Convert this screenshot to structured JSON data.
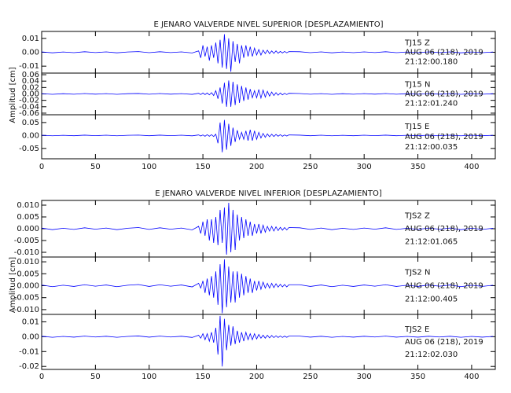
{
  "chart_data": [
    {
      "type": "line",
      "title": "E JENARO VALVERDE NIVEL SUPERIOR [DESPLAZAMIENTO]",
      "ylabel": "Amplitud [cm]",
      "xlim": [
        0,
        422
      ],
      "xticks": [
        0,
        50,
        100,
        150,
        200,
        250,
        300,
        350,
        400
      ],
      "x": [
        0,
        10,
        20,
        30,
        40,
        50,
        60,
        70,
        80,
        90,
        100,
        110,
        120,
        130,
        140,
        146,
        148,
        150,
        152,
        154,
        156,
        158,
        160,
        162,
        164,
        166,
        168,
        170,
        172,
        174,
        176,
        178,
        180,
        182,
        184,
        186,
        188,
        190,
        192,
        194,
        196,
        198,
        200,
        202,
        204,
        206,
        208,
        210,
        212,
        214,
        216,
        218,
        220,
        222,
        224,
        226,
        228,
        230,
        240,
        250,
        260,
        270,
        280,
        290,
        300,
        310,
        320,
        330,
        340,
        350,
        360,
        370,
        380,
        390,
        400,
        410,
        420
      ],
      "series": [
        {
          "name": "TJ15  Z",
          "date": "AUG 06 (218), 2019",
          "time": "21:12:00.180",
          "color": "#0000ff",
          "ylim": [
            -0.015,
            0.015
          ],
          "yticks": [
            0.01,
            {
              "value": 0,
              "label": "0.00"
            },
            -0.01
          ],
          "values": [
            0.0003,
            -0.0004,
            0.0002,
            -0.0003,
            0.0004,
            -0.0002,
            0.0003,
            -0.0004,
            0.0002,
            0.0005,
            -0.0003,
            0.0004,
            -0.0002,
            0.0003,
            -0.0005,
            0.001,
            -0.004,
            0.005,
            -0.003,
            0.004,
            -0.006,
            0.005,
            -0.004,
            0.007,
            -0.008,
            0.009,
            -0.011,
            0.013,
            -0.012,
            0.01,
            -0.014,
            0.008,
            -0.007,
            0.006,
            -0.008,
            0.005,
            -0.004,
            0.005,
            -0.003,
            0.004,
            -0.003,
            0.003,
            -0.002,
            0.002,
            -0.002,
            0.0015,
            -0.001,
            0.0015,
            -0.001,
            0.001,
            -0.0008,
            0.001,
            -0.0007,
            0.0006,
            -0.0005,
            0.0006,
            -0.0004,
            0.0005,
            0.0004,
            -0.0003,
            0.0003,
            -0.0004,
            0.0002,
            -0.0003,
            0.0003,
            -0.0002,
            0.0004,
            -0.0003,
            0.0002,
            -0.0003,
            0.0003,
            -0.0002,
            0.0003,
            -0.0004,
            0.0002,
            -0.0003,
            0.0002
          ]
        },
        {
          "name": "TJ15  N",
          "date": "AUG 06 (218), 2019",
          "time": "21:12:01.240",
          "color": "#0000ff",
          "ylim": [
            -0.065,
            0.065
          ],
          "yticks": [
            0.06,
            0.04,
            0.02,
            {
              "value": 0,
              "label": "0.00"
            },
            -0.02,
            -0.04,
            -0.06
          ],
          "values": [
            0.001,
            -0.0012,
            0.0008,
            -0.001,
            0.0012,
            -0.0008,
            0.001,
            -0.0012,
            0.0008,
            0.0014,
            -0.001,
            0.0012,
            -0.0008,
            0.001,
            -0.0014,
            0.002,
            -0.002,
            0.003,
            -0.002,
            0.003,
            -0.003,
            0.004,
            -0.005,
            0.01,
            -0.015,
            0.02,
            -0.03,
            0.035,
            -0.04,
            0.042,
            -0.04,
            0.038,
            -0.035,
            0.03,
            -0.028,
            0.025,
            -0.022,
            0.02,
            -0.018,
            0.015,
            -0.012,
            0.01,
            -0.012,
            0.014,
            -0.013,
            0.012,
            -0.01,
            0.008,
            -0.007,
            0.006,
            -0.005,
            0.004,
            -0.004,
            0.003,
            -0.003,
            0.002,
            -0.002,
            0.002,
            0.0012,
            -0.001,
            0.001,
            -0.0012,
            0.0008,
            -0.001,
            0.001,
            -0.0008,
            0.0012,
            -0.001,
            0.0008,
            -0.001,
            0.001,
            -0.0008,
            0.001,
            -0.0012,
            0.0008,
            -0.001,
            0.0008
          ]
        },
        {
          "name": "TJ15  E",
          "date": "AUG 06 (218), 2019",
          "time": "21:12:00.035",
          "color": "#0000ff",
          "ylim": [
            -0.09,
            0.08
          ],
          "yticks": [
            0.05,
            {
              "value": 0,
              "label": "0.00"
            },
            -0.05
          ],
          "values": [
            0.001,
            -0.0012,
            0.0008,
            -0.001,
            0.0012,
            -0.0008,
            0.001,
            -0.0012,
            0.0008,
            0.0014,
            -0.001,
            0.0012,
            -0.0008,
            0.001,
            -0.0014,
            0.002,
            -0.002,
            0.002,
            -0.003,
            0.003,
            -0.003,
            0.003,
            -0.004,
            0.005,
            -0.03,
            0.05,
            -0.065,
            0.06,
            -0.055,
            0.045,
            -0.04,
            0.03,
            -0.025,
            0.02,
            -0.015,
            0.012,
            -0.015,
            0.018,
            -0.02,
            0.022,
            -0.02,
            0.018,
            -0.015,
            0.012,
            -0.01,
            0.008,
            -0.007,
            0.006,
            -0.005,
            0.005,
            -0.004,
            0.004,
            -0.003,
            0.003,
            -0.003,
            0.002,
            -0.002,
            0.002,
            0.0012,
            -0.001,
            0.001,
            -0.0012,
            0.0008,
            -0.001,
            0.001,
            -0.0008,
            0.0012,
            -0.001,
            0.0008,
            -0.001,
            0.001,
            -0.0008,
            0.001,
            -0.0012,
            0.0008,
            -0.001,
            0.0008
          ]
        }
      ]
    },
    {
      "type": "line",
      "title": "E JENARO VALVERDE NIVEL INFERIOR [DESPLAZAMIENTO]",
      "ylabel": "Amplitud [cm]",
      "xlim": [
        0,
        422
      ],
      "xticks": [
        0,
        50,
        100,
        150,
        200,
        250,
        300,
        350,
        400
      ],
      "x": [
        0,
        10,
        20,
        30,
        40,
        50,
        60,
        70,
        80,
        90,
        100,
        110,
        120,
        130,
        140,
        146,
        148,
        150,
        152,
        154,
        156,
        158,
        160,
        162,
        164,
        166,
        168,
        170,
        172,
        174,
        176,
        178,
        180,
        182,
        184,
        186,
        188,
        190,
        192,
        194,
        196,
        198,
        200,
        202,
        204,
        206,
        208,
        210,
        212,
        214,
        216,
        218,
        220,
        222,
        224,
        226,
        228,
        230,
        240,
        250,
        260,
        270,
        280,
        290,
        300,
        310,
        320,
        330,
        340,
        350,
        360,
        370,
        380,
        390,
        400,
        410,
        420
      ],
      "series": [
        {
          "name": "TJS2  Z",
          "date": "AUG 06 (218), 2019",
          "time": "21:12:01.065",
          "color": "#0000ff",
          "ylim": [
            -0.012,
            0.012
          ],
          "yticks": [
            {
              "value": 0.01,
              "label": "0.010"
            },
            0.005,
            {
              "value": 0,
              "label": "0.000"
            },
            -0.005,
            {
              "value": -0.01,
              "label": "-0.010"
            }
          ],
          "values": [
            0.0003,
            -0.0004,
            0.0002,
            -0.0003,
            0.0004,
            -0.0002,
            0.0003,
            -0.0004,
            0.0002,
            0.0005,
            -0.0003,
            0.0004,
            -0.0002,
            0.0003,
            -0.0005,
            0.001,
            -0.002,
            0.003,
            -0.003,
            0.004,
            -0.005,
            0.004,
            -0.006,
            0.005,
            -0.007,
            0.008,
            -0.006,
            0.009,
            -0.011,
            0.011,
            -0.01,
            0.008,
            -0.009,
            0.006,
            -0.005,
            0.005,
            -0.004,
            0.004,
            -0.003,
            0.003,
            -0.003,
            0.002,
            -0.002,
            0.002,
            -0.002,
            0.0015,
            -0.0015,
            0.001,
            -0.001,
            0.001,
            -0.001,
            0.0008,
            -0.0008,
            0.0006,
            -0.0006,
            0.0005,
            -0.0005,
            0.0005,
            0.0004,
            -0.0003,
            0.0003,
            -0.0004,
            0.0002,
            -0.0003,
            0.0003,
            -0.0002,
            0.0004,
            -0.0003,
            0.0002,
            -0.0003,
            0.0003,
            -0.0002,
            0.0003,
            -0.0004,
            0.0002,
            -0.0003,
            0.0002
          ]
        },
        {
          "name": "TJS2  N",
          "date": "AUG 06 (218), 2019",
          "time": "21:12:00.405",
          "color": "#0000ff",
          "ylim": [
            -0.012,
            0.012
          ],
          "yticks": [
            {
              "value": 0.01,
              "label": "0.010"
            },
            0.005,
            {
              "value": 0,
              "label": "0.000"
            },
            -0.005,
            {
              "value": -0.01,
              "label": "-0.010"
            }
          ],
          "values": [
            0.0003,
            -0.0004,
            0.0002,
            -0.0003,
            0.0004,
            -0.0002,
            0.0003,
            -0.0004,
            0.0002,
            0.0005,
            -0.0003,
            0.0004,
            -0.0002,
            0.0003,
            -0.0005,
            0.001,
            -0.001,
            0.002,
            -0.003,
            0.003,
            -0.004,
            0.004,
            -0.005,
            0.006,
            -0.008,
            0.009,
            -0.0115,
            0.011,
            -0.009,
            0.008,
            -0.007,
            0.006,
            -0.007,
            0.006,
            -0.005,
            0.005,
            -0.004,
            0.004,
            -0.003,
            0.003,
            -0.003,
            0.002,
            -0.002,
            0.002,
            -0.0015,
            0.0015,
            -0.001,
            0.001,
            -0.001,
            0.001,
            -0.0008,
            0.0008,
            -0.0006,
            0.0006,
            -0.0005,
            0.0005,
            -0.0005,
            0.0004,
            0.0004,
            -0.0003,
            0.0003,
            -0.0004,
            0.0002,
            -0.0003,
            0.0003,
            -0.0002,
            0.0004,
            -0.0003,
            0.0002,
            -0.0003,
            0.0003,
            -0.0002,
            0.0003,
            -0.0004,
            0.0002,
            -0.0003,
            0.0002
          ]
        },
        {
          "name": "TJS2  E",
          "date": "AUG 06 (218), 2019",
          "time": "21:12:02.030",
          "color": "#0000ff",
          "ylim": [
            -0.022,
            0.015
          ],
          "yticks": [
            0.01,
            {
              "value": 0,
              "label": "0.00"
            },
            -0.01,
            -0.02
          ],
          "values": [
            0.0003,
            -0.0004,
            0.0002,
            -0.0003,
            0.0004,
            -0.0002,
            0.0003,
            -0.0004,
            0.0002,
            0.0005,
            -0.0003,
            0.0004,
            -0.0002,
            0.0003,
            -0.0005,
            0.001,
            -0.001,
            0.002,
            -0.002,
            0.002,
            -0.003,
            0.003,
            -0.004,
            0.006,
            -0.012,
            0.014,
            -0.02,
            0.012,
            -0.009,
            0.008,
            -0.006,
            0.007,
            -0.005,
            0.004,
            -0.004,
            0.003,
            -0.003,
            0.003,
            -0.002,
            0.002,
            -0.002,
            0.002,
            -0.0015,
            0.0015,
            -0.001,
            0.001,
            -0.001,
            0.001,
            -0.0008,
            0.0008,
            -0.0006,
            0.0006,
            -0.0005,
            0.0005,
            -0.0005,
            0.0004,
            -0.0004,
            0.0004,
            0.0004,
            -0.0003,
            0.0003,
            -0.0004,
            0.0002,
            -0.0003,
            0.0003,
            -0.0002,
            0.0004,
            -0.0003,
            0.0002,
            -0.0003,
            0.0003,
            -0.0002,
            0.0003,
            -0.0004,
            0.0002,
            -0.0003,
            0.0002
          ]
        }
      ]
    }
  ]
}
